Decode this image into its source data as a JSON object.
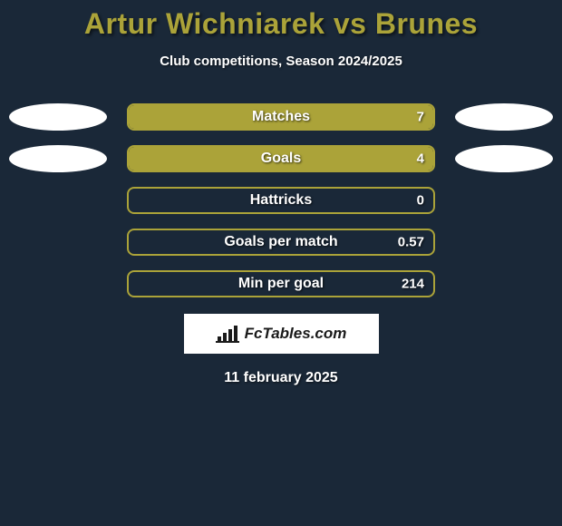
{
  "title": "Artur Wichniarek vs Brunes",
  "subtitle": "Club competitions, Season 2024/2025",
  "date": "11 february 2025",
  "logo_text": "FcTables.com",
  "colors": {
    "background": "#1a2838",
    "accent": "#aba339",
    "bar_border": "#aba339",
    "bar_fill": "#aba339",
    "title_color": "#aba339",
    "text_color": "#ffffff",
    "ellipse_color": "#ffffff",
    "logo_bg": "#ffffff",
    "logo_text_color": "#1a1a1a"
  },
  "chart": {
    "type": "bar",
    "track_width": 340,
    "track_height": 30,
    "border_radius": 8,
    "label_fontsize": 16,
    "value_fontsize": 15
  },
  "stats": [
    {
      "label": "Matches",
      "value": "7",
      "fill_pct": 100,
      "left_ellipse": true,
      "right_ellipse": true
    },
    {
      "label": "Goals",
      "value": "4",
      "fill_pct": 100,
      "left_ellipse": true,
      "right_ellipse": true
    },
    {
      "label": "Hattricks",
      "value": "0",
      "fill_pct": 0,
      "left_ellipse": false,
      "right_ellipse": false
    },
    {
      "label": "Goals per match",
      "value": "0.57",
      "fill_pct": 0,
      "left_ellipse": false,
      "right_ellipse": false
    },
    {
      "label": "Min per goal",
      "value": "214",
      "fill_pct": 0,
      "left_ellipse": false,
      "right_ellipse": false
    }
  ]
}
